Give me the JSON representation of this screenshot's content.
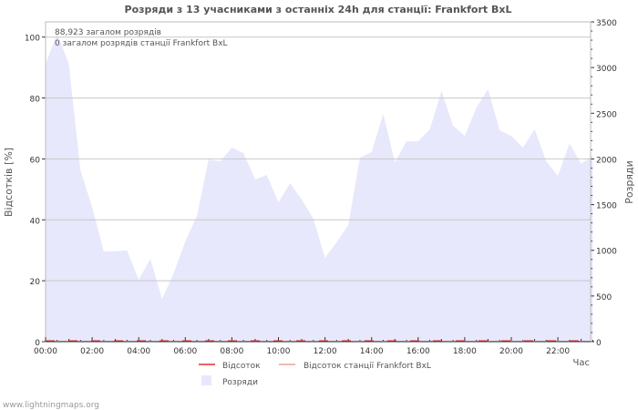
{
  "chart_data": {
    "type": "area",
    "title": "Розряди з 13 учасниками з останніх 24h для станції: Frankfort BxL",
    "xlabel": "Час",
    "ylabel_left": "Відсотків   [%]",
    "ylabel_right": "Розряди",
    "ylim_left": [
      0,
      105
    ],
    "ylim_right": [
      0,
      3500
    ],
    "xlim_hours": [
      0,
      23.5
    ],
    "left_ticks": [
      "0",
      "20",
      "40",
      "60",
      "80",
      "100"
    ],
    "left_tick_values": [
      0,
      20,
      40,
      60,
      80,
      100
    ],
    "right_ticks": [
      "0",
      "500",
      "1000",
      "1500",
      "2000",
      "2500",
      "3000",
      "3500"
    ],
    "right_tick_values": [
      0,
      500,
      1000,
      1500,
      2000,
      2500,
      3000,
      3500
    ],
    "x_ticks": [
      "00:00",
      "02:00",
      "04:00",
      "06:00",
      "08:00",
      "10:00",
      "12:00",
      "14:00",
      "16:00",
      "18:00",
      "20:00",
      "22:00"
    ],
    "x_tick_hours": [
      0,
      2,
      4,
      6,
      8,
      10,
      12,
      14,
      16,
      18,
      20,
      22
    ],
    "grid": true,
    "annotations": [
      "88,923 загалом розрядів",
      "0 загалом розрядів станції Frankfort BxL"
    ],
    "series": [
      {
        "name": "Розряди",
        "axis": "right",
        "kind": "area",
        "color": "#e8e8fc",
        "x_hours": [
          0,
          0.5,
          1,
          1.5,
          2,
          2.5,
          3,
          3.5,
          4,
          4.5,
          5,
          5.5,
          6,
          6.5,
          7,
          7.5,
          8,
          8.5,
          9,
          9.5,
          10,
          10.5,
          11,
          11.5,
          12,
          12.5,
          13,
          13.5,
          14,
          14.5,
          15,
          15.5,
          16,
          16.5,
          17,
          17.5,
          18,
          18.5,
          19,
          19.5,
          20,
          20.5,
          21,
          21.5,
          22,
          22.5,
          23,
          23.5
        ],
        "values": [
          3040,
          3373,
          3040,
          1875,
          1475,
          987,
          990,
          997,
          678,
          907,
          469,
          748,
          1100,
          1376,
          1994,
          1974,
          2124,
          2064,
          1775,
          1825,
          1525,
          1735,
          1555,
          1346,
          917,
          1090,
          1276,
          2014,
          2074,
          2492,
          1964,
          2193,
          2193,
          2323,
          2742,
          2363,
          2253,
          2562,
          2762,
          2313,
          2253,
          2124,
          2323,
          1974,
          1815,
          2173,
          1944,
          2044
        ]
      },
      {
        "name": "Відсоток",
        "axis": "left",
        "kind": "line",
        "color": "#e03030",
        "values_constant": 0.3
      },
      {
        "name": "Відсоток станції Frankfort BxL",
        "axis": "left",
        "kind": "line",
        "color": "#f0a0a0",
        "values_constant": 0
      }
    ],
    "legend": [
      {
        "label": "Відсоток",
        "color": "#e03030",
        "kind": "line"
      },
      {
        "label": "Відсоток станції Frankfort BxL",
        "color": "#f0a0a0",
        "kind": "line"
      },
      {
        "label": "Розряди",
        "color": "#e8e8fc",
        "kind": "box"
      }
    ],
    "legend_placement": "bottom"
  },
  "watermark": "www.lightningmaps.org"
}
